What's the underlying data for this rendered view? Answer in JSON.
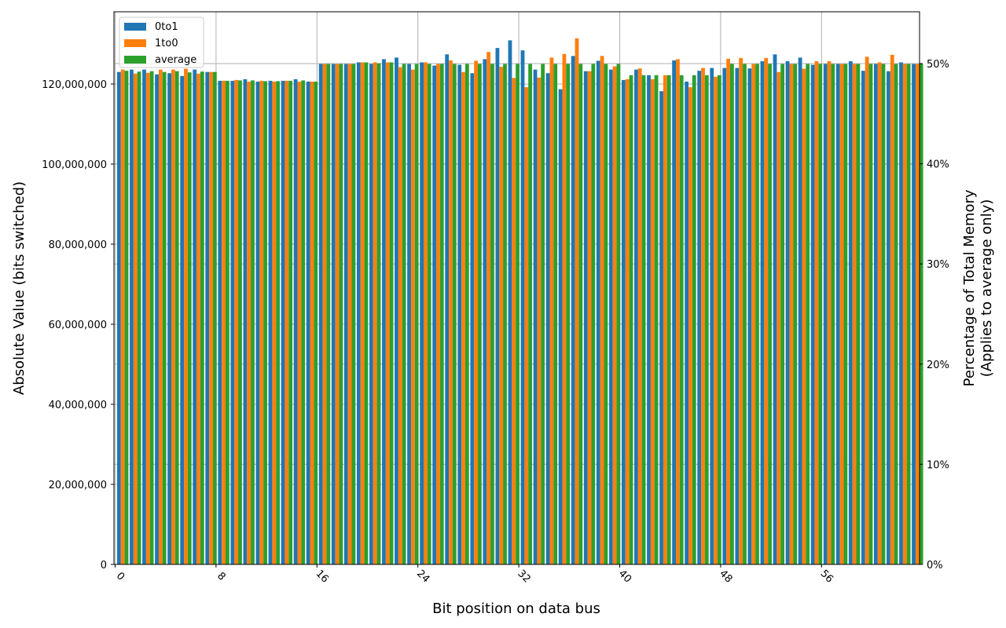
{
  "chart_data": {
    "type": "bar",
    "title": "",
    "xlabel": "Bit position on data bus",
    "ylabel": "Absolute Value (bits switched)",
    "y2label_line1": "Percentage of Total Memory",
    "y2label_line2": "(Applies to average only)",
    "ylim": [
      0,
      138000000
    ],
    "y2lim": [
      0,
      54.1
    ],
    "grid": true,
    "legend_position": "upper left",
    "x_ticks": [
      "0",
      "8",
      "16",
      "24",
      "32",
      "40",
      "48",
      "56"
    ],
    "x_tick_positions": [
      0,
      8,
      16,
      24,
      32,
      40,
      48,
      56
    ],
    "y_ticks": [
      0,
      20000000,
      40000000,
      60000000,
      80000000,
      100000000,
      120000000
    ],
    "y_tick_labels": [
      "0",
      "20,000,000",
      "40,000,000",
      "60,000,000",
      "80,000,000",
      "100,000,000",
      "120,000,000"
    ],
    "y2_ticks": [
      0,
      10,
      20,
      30,
      40,
      50
    ],
    "y2_tick_labels": [
      "0%",
      "10%",
      "20%",
      "30%",
      "40%",
      "50%"
    ],
    "categories": [
      0,
      1,
      2,
      3,
      4,
      5,
      6,
      7,
      8,
      9,
      10,
      11,
      12,
      13,
      14,
      15,
      16,
      17,
      18,
      19,
      20,
      21,
      22,
      23,
      24,
      25,
      26,
      27,
      28,
      29,
      30,
      31,
      32,
      33,
      34,
      35,
      36,
      37,
      38,
      39,
      40,
      41,
      42,
      43,
      44,
      45,
      46,
      47,
      48,
      49,
      50,
      51,
      52,
      53,
      54,
      55,
      56,
      57,
      58,
      59,
      60,
      61,
      62,
      63
    ],
    "series": [
      {
        "name": "0to1",
        "color": "#1f77b4",
        "values": [
          123000000,
          123600000,
          123600000,
          122400000,
          122700000,
          122000000,
          123600000,
          123000000,
          120800000,
          120800000,
          121200000,
          120600000,
          120800000,
          120800000,
          121200000,
          120600000,
          125000000,
          125000000,
          125000000,
          125400000,
          125000000,
          126200000,
          126600000,
          125000000,
          125400000,
          124600000,
          127400000,
          124800000,
          122700000,
          126200000,
          129000000,
          130900000,
          128400000,
          123600000,
          122700000,
          118700000,
          127000000,
          123200000,
          125800000,
          123600000,
          121000000,
          123600000,
          122200000,
          118200000,
          125900000,
          120600000,
          123300000,
          124000000,
          124000000,
          124000000,
          123900000,
          125700000,
          127400000,
          125700000,
          126600000,
          124800000,
          125000000,
          125000000,
          125700000,
          123300000,
          125000000,
          123200000,
          125400000,
          125000000
        ]
      },
      {
        "name": "1to0",
        "color": "#ff7f0e",
        "values": [
          123600000,
          122600000,
          122800000,
          123600000,
          123600000,
          123800000,
          122600000,
          123000000,
          120800000,
          121000000,
          120600000,
          120800000,
          120600000,
          120800000,
          120600000,
          120600000,
          125000000,
          125000000,
          125000000,
          125400000,
          125400000,
          125400000,
          124200000,
          123600000,
          125400000,
          125000000,
          125900000,
          123000000,
          125800000,
          128000000,
          124300000,
          121500000,
          119200000,
          121600000,
          126600000,
          127500000,
          131400000,
          123200000,
          127000000,
          124400000,
          121200000,
          123900000,
          121200000,
          122200000,
          126200000,
          119200000,
          124000000,
          121800000,
          126300000,
          126500000,
          125000000,
          126500000,
          123000000,
          125000000,
          123800000,
          125700000,
          125700000,
          125000000,
          125000000,
          126800000,
          125400000,
          127300000,
          125000000,
          125000000
        ]
      },
      {
        "name": "average",
        "color": "#2ca02c",
        "values": [
          123300000,
          123100000,
          123200000,
          123000000,
          123200000,
          122900000,
          123100000,
          123000000,
          120800000,
          120900000,
          120900000,
          120700000,
          120700000,
          120800000,
          120900000,
          120600000,
          125000000,
          125000000,
          125000000,
          125400000,
          125200000,
          125400000,
          125000000,
          125000000,
          125000000,
          125000000,
          125000000,
          125000000,
          125000000,
          125000000,
          125000000,
          125000000,
          125000000,
          125000000,
          125000000,
          125000000,
          125000000,
          125000000,
          125000000,
          125000000,
          122200000,
          122200000,
          122200000,
          122200000,
          122200000,
          122200000,
          122200000,
          122200000,
          125000000,
          125000000,
          125000000,
          125000000,
          125000000,
          125000000,
          125000000,
          125000000,
          125000000,
          125000000,
          125000000,
          125000000,
          125000000,
          125000000,
          125000000,
          125000000
        ]
      }
    ]
  },
  "legend": {
    "items": [
      {
        "label": "0to1",
        "color": "#1f77b4"
      },
      {
        "label": "1to0",
        "color": "#ff7f0e"
      },
      {
        "label": "average",
        "color": "#2ca02c"
      }
    ]
  }
}
